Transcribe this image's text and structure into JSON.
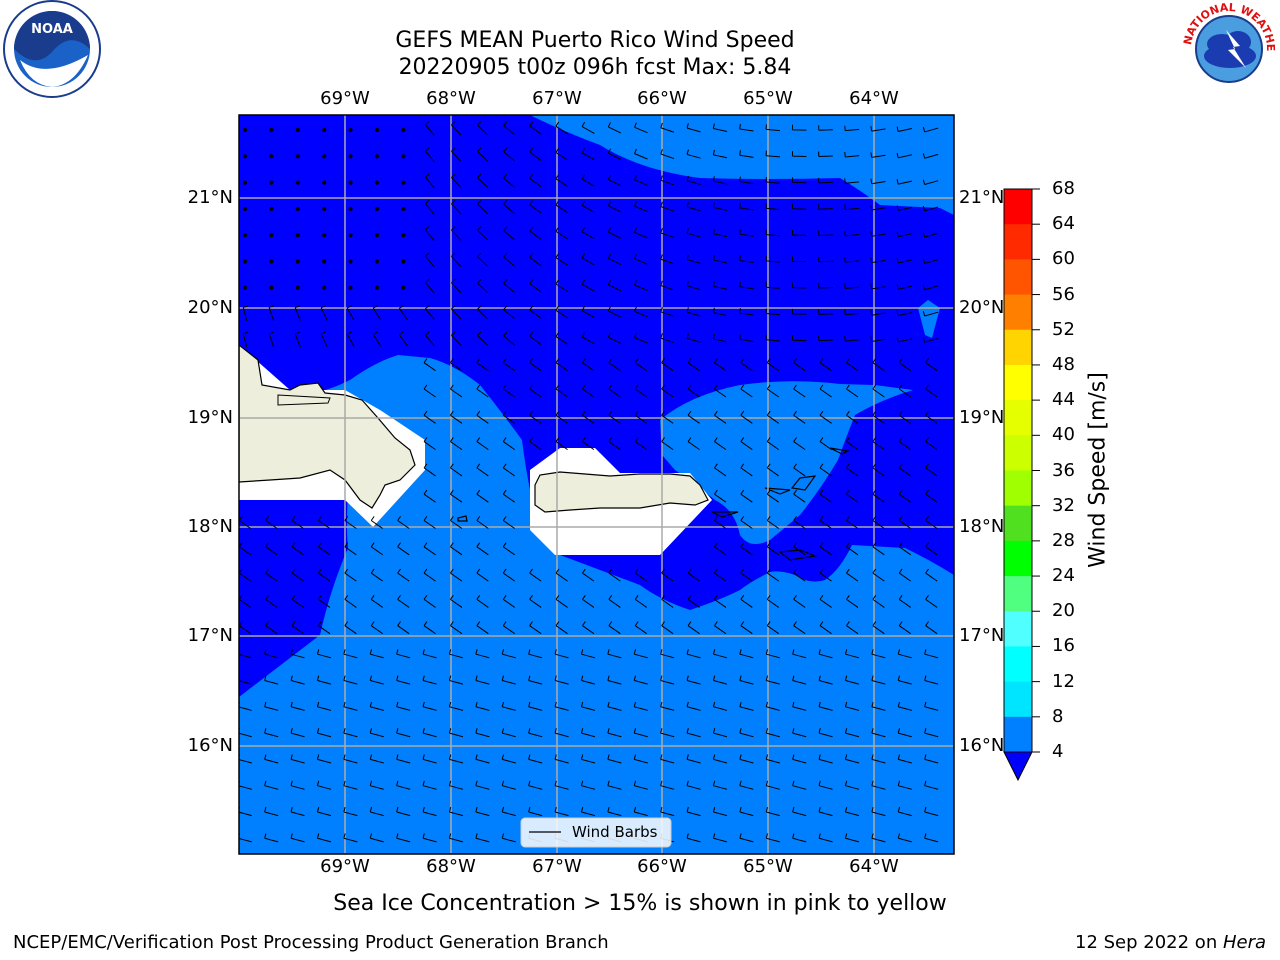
{
  "title": "GEFS MEAN Puerto Rico Wind Speed",
  "subtitle_line": "20220905 t00z 096h fcst   Max: 5.84",
  "bottom_note": "Sea Ice Concentration > 15% is shown in pink to yellow",
  "footer": {
    "left": "NCEP/EMC/Verification Post Processing Product Generation Branch",
    "date": "12 Sep 2022 on ",
    "machine": "Hera"
  },
  "logos": {
    "noaa_text": "NOAA",
    "nws_text": "NATIONAL WEATHER SERVICE"
  },
  "map": {
    "lon_labels": [
      "69°W",
      "68°W",
      "67°W",
      "66°W",
      "65°W",
      "64°W"
    ],
    "lat_labels": [
      "21°N",
      "20°N",
      "19°N",
      "18°N",
      "17°N",
      "16°N"
    ],
    "legend_label": "Wind Barbs"
  },
  "colorbar": {
    "label": "Wind Speed [m/s]",
    "ticks": [
      "68",
      "64",
      "60",
      "56",
      "52",
      "48",
      "44",
      "40",
      "36",
      "32",
      "28",
      "24",
      "20",
      "16",
      "12",
      "8",
      "4"
    ],
    "colors": [
      "#ff0000",
      "#ff2a00",
      "#ff5500",
      "#ff8000",
      "#ffaa00",
      "#ffd400",
      "#ffff00",
      "#e6ff00",
      "#ccff00",
      "#a0ff00",
      "#50e020",
      "#00ff00",
      "#50ff80",
      "#a0ffff",
      "#50ffff",
      "#00ffff",
      "#00e5ff",
      "#0080ff",
      "#0000ff"
    ],
    "underflow_color": "#0000ff"
  },
  "colors": {
    "low_wind": "#0000ff",
    "mid_wind": "#0080ff",
    "land": "#eeeedc"
  }
}
